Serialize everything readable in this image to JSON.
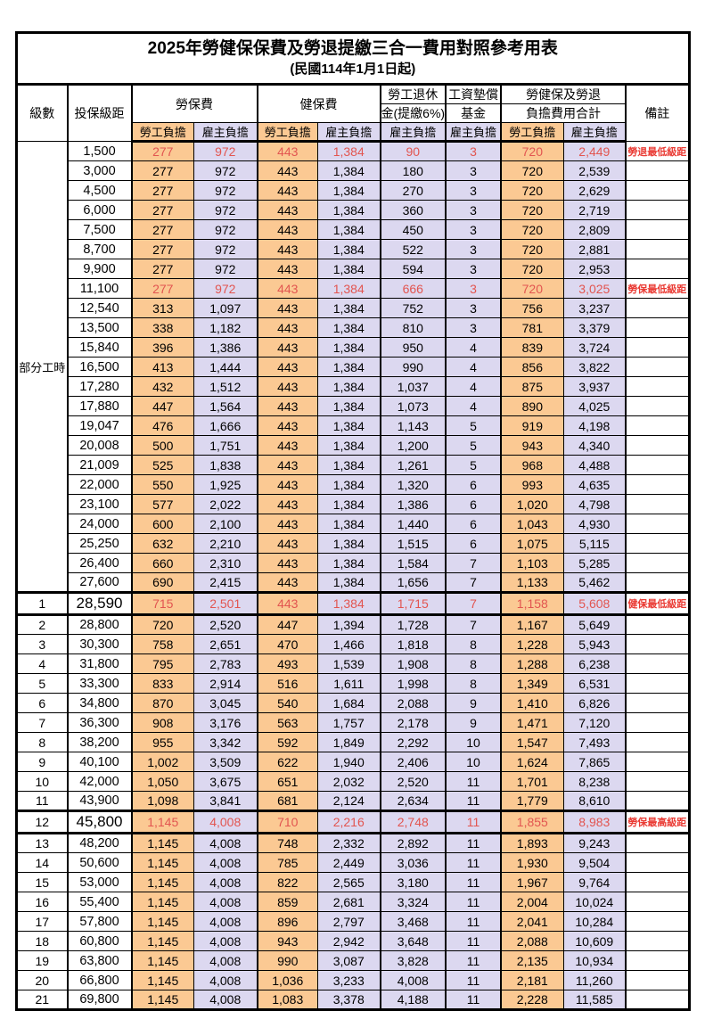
{
  "table": {
    "title": "2025年勞健保保費及勞退提繳三合一費用對照參考用表",
    "subtitle": "(民國114年1月1日起)",
    "colors": {
      "employee_col_bg": "#fbc993",
      "employer_col_bg": "#dcd8f0",
      "highlight_value_text": "#e25550",
      "note_text": "#ea3b34",
      "grid_line": "#000000"
    },
    "header": {
      "level": "級數",
      "salary": "投保級距",
      "labor_group": "勞保費",
      "health_group": "健保費",
      "pension_line1": "勞工退休",
      "pension_line2": "金(提繳6%)",
      "wage_fund_line1": "工資墊償",
      "wage_fund_line2": "基金",
      "total_line1": "勞健保及勞退",
      "total_line2": "負擔費用合計",
      "remark": "備註",
      "employee_burden": "勞工負擔",
      "employer_burden": "雇主負擔"
    },
    "part_time_label": "部分工時",
    "part_time_rowspan": 23,
    "rows": [
      {
        "level": "",
        "salary": "1,500",
        "labor_emp": "277",
        "labor_er": "972",
        "health_emp": "443",
        "health_er": "1,384",
        "pension_er": "90",
        "fund_er": "3",
        "total_emp": "720",
        "total_er": "2,449",
        "note": "勞退最低級距",
        "red": true,
        "big": false
      },
      {
        "level": "",
        "salary": "3,000",
        "labor_emp": "277",
        "labor_er": "972",
        "health_emp": "443",
        "health_er": "1,384",
        "pension_er": "180",
        "fund_er": "3",
        "total_emp": "720",
        "total_er": "2,539",
        "note": "",
        "red": false,
        "big": false
      },
      {
        "level": "",
        "salary": "4,500",
        "labor_emp": "277",
        "labor_er": "972",
        "health_emp": "443",
        "health_er": "1,384",
        "pension_er": "270",
        "fund_er": "3",
        "total_emp": "720",
        "total_er": "2,629",
        "note": "",
        "red": false,
        "big": false
      },
      {
        "level": "",
        "salary": "6,000",
        "labor_emp": "277",
        "labor_er": "972",
        "health_emp": "443",
        "health_er": "1,384",
        "pension_er": "360",
        "fund_er": "3",
        "total_emp": "720",
        "total_er": "2,719",
        "note": "",
        "red": false,
        "big": false
      },
      {
        "level": "",
        "salary": "7,500",
        "labor_emp": "277",
        "labor_er": "972",
        "health_emp": "443",
        "health_er": "1,384",
        "pension_er": "450",
        "fund_er": "3",
        "total_emp": "720",
        "total_er": "2,809",
        "note": "",
        "red": false,
        "big": false
      },
      {
        "level": "",
        "salary": "8,700",
        "labor_emp": "277",
        "labor_er": "972",
        "health_emp": "443",
        "health_er": "1,384",
        "pension_er": "522",
        "fund_er": "3",
        "total_emp": "720",
        "total_er": "2,881",
        "note": "",
        "red": false,
        "big": false
      },
      {
        "level": "",
        "salary": "9,900",
        "labor_emp": "277",
        "labor_er": "972",
        "health_emp": "443",
        "health_er": "1,384",
        "pension_er": "594",
        "fund_er": "3",
        "total_emp": "720",
        "total_er": "2,953",
        "note": "",
        "red": false,
        "big": false
      },
      {
        "level": "",
        "salary": "11,100",
        "labor_emp": "277",
        "labor_er": "972",
        "health_emp": "443",
        "health_er": "1,384",
        "pension_er": "666",
        "fund_er": "3",
        "total_emp": "720",
        "total_er": "3,025",
        "note": "勞保最低級距",
        "red": true,
        "big": false
      },
      {
        "level": "",
        "salary": "12,540",
        "labor_emp": "313",
        "labor_er": "1,097",
        "health_emp": "443",
        "health_er": "1,384",
        "pension_er": "752",
        "fund_er": "3",
        "total_emp": "756",
        "total_er": "3,237",
        "note": "",
        "red": false,
        "big": false
      },
      {
        "level": "",
        "salary": "13,500",
        "labor_emp": "338",
        "labor_er": "1,182",
        "health_emp": "443",
        "health_er": "1,384",
        "pension_er": "810",
        "fund_er": "3",
        "total_emp": "781",
        "total_er": "3,379",
        "note": "",
        "red": false,
        "big": false
      },
      {
        "level": "",
        "salary": "15,840",
        "labor_emp": "396",
        "labor_er": "1,386",
        "health_emp": "443",
        "health_er": "1,384",
        "pension_er": "950",
        "fund_er": "4",
        "total_emp": "839",
        "total_er": "3,724",
        "note": "",
        "red": false,
        "big": false
      },
      {
        "level": "",
        "salary": "16,500",
        "labor_emp": "413",
        "labor_er": "1,444",
        "health_emp": "443",
        "health_er": "1,384",
        "pension_er": "990",
        "fund_er": "4",
        "total_emp": "856",
        "total_er": "3,822",
        "note": "",
        "red": false,
        "big": false
      },
      {
        "level": "",
        "salary": "17,280",
        "labor_emp": "432",
        "labor_er": "1,512",
        "health_emp": "443",
        "health_er": "1,384",
        "pension_er": "1,037",
        "fund_er": "4",
        "total_emp": "875",
        "total_er": "3,937",
        "note": "",
        "red": false,
        "big": false
      },
      {
        "level": "",
        "salary": "17,880",
        "labor_emp": "447",
        "labor_er": "1,564",
        "health_emp": "443",
        "health_er": "1,384",
        "pension_er": "1,073",
        "fund_er": "4",
        "total_emp": "890",
        "total_er": "4,025",
        "note": "",
        "red": false,
        "big": false
      },
      {
        "level": "",
        "salary": "19,047",
        "labor_emp": "476",
        "labor_er": "1,666",
        "health_emp": "443",
        "health_er": "1,384",
        "pension_er": "1,143",
        "fund_er": "5",
        "total_emp": "919",
        "total_er": "4,198",
        "note": "",
        "red": false,
        "big": false
      },
      {
        "level": "",
        "salary": "20,008",
        "labor_emp": "500",
        "labor_er": "1,751",
        "health_emp": "443",
        "health_er": "1,384",
        "pension_er": "1,200",
        "fund_er": "5",
        "total_emp": "943",
        "total_er": "4,340",
        "note": "",
        "red": false,
        "big": false
      },
      {
        "level": "",
        "salary": "21,009",
        "labor_emp": "525",
        "labor_er": "1,838",
        "health_emp": "443",
        "health_er": "1,384",
        "pension_er": "1,261",
        "fund_er": "5",
        "total_emp": "968",
        "total_er": "4,488",
        "note": "",
        "red": false,
        "big": false
      },
      {
        "level": "",
        "salary": "22,000",
        "labor_emp": "550",
        "labor_er": "1,925",
        "health_emp": "443",
        "health_er": "1,384",
        "pension_er": "1,320",
        "fund_er": "6",
        "total_emp": "993",
        "total_er": "4,635",
        "note": "",
        "red": false,
        "big": false
      },
      {
        "level": "",
        "salary": "23,100",
        "labor_emp": "577",
        "labor_er": "2,022",
        "health_emp": "443",
        "health_er": "1,384",
        "pension_er": "1,386",
        "fund_er": "6",
        "total_emp": "1,020",
        "total_er": "4,798",
        "note": "",
        "red": false,
        "big": false
      },
      {
        "level": "",
        "salary": "24,000",
        "labor_emp": "600",
        "labor_er": "2,100",
        "health_emp": "443",
        "health_er": "1,384",
        "pension_er": "1,440",
        "fund_er": "6",
        "total_emp": "1,043",
        "total_er": "4,930",
        "note": "",
        "red": false,
        "big": false
      },
      {
        "level": "",
        "salary": "25,250",
        "labor_emp": "632",
        "labor_er": "2,210",
        "health_emp": "443",
        "health_er": "1,384",
        "pension_er": "1,515",
        "fund_er": "6",
        "total_emp": "1,075",
        "total_er": "5,115",
        "note": "",
        "red": false,
        "big": false
      },
      {
        "level": "",
        "salary": "26,400",
        "labor_emp": "660",
        "labor_er": "2,310",
        "health_emp": "443",
        "health_er": "1,384",
        "pension_er": "1,584",
        "fund_er": "7",
        "total_emp": "1,103",
        "total_er": "5,285",
        "note": "",
        "red": false,
        "big": false
      },
      {
        "level": "",
        "salary": "27,600",
        "labor_emp": "690",
        "labor_er": "2,415",
        "health_emp": "443",
        "health_er": "1,384",
        "pension_er": "1,656",
        "fund_er": "7",
        "total_emp": "1,133",
        "total_er": "5,462",
        "note": "",
        "red": false,
        "big": false
      },
      {
        "level": "1",
        "salary": "28,590",
        "labor_emp": "715",
        "labor_er": "2,501",
        "health_emp": "443",
        "health_er": "1,384",
        "pension_er": "1,715",
        "fund_er": "7",
        "total_emp": "1,158",
        "total_er": "5,608",
        "note": "健保最低級距",
        "red": true,
        "big": true
      },
      {
        "level": "2",
        "salary": "28,800",
        "labor_emp": "720",
        "labor_er": "2,520",
        "health_emp": "447",
        "health_er": "1,394",
        "pension_er": "1,728",
        "fund_er": "7",
        "total_emp": "1,167",
        "total_er": "5,649",
        "note": "",
        "red": false,
        "big": false
      },
      {
        "level": "3",
        "salary": "30,300",
        "labor_emp": "758",
        "labor_er": "2,651",
        "health_emp": "470",
        "health_er": "1,466",
        "pension_er": "1,818",
        "fund_er": "8",
        "total_emp": "1,228",
        "total_er": "5,943",
        "note": "",
        "red": false,
        "big": false
      },
      {
        "level": "4",
        "salary": "31,800",
        "labor_emp": "795",
        "labor_er": "2,783",
        "health_emp": "493",
        "health_er": "1,539",
        "pension_er": "1,908",
        "fund_er": "8",
        "total_emp": "1,288",
        "total_er": "6,238",
        "note": "",
        "red": false,
        "big": false
      },
      {
        "level": "5",
        "salary": "33,300",
        "labor_emp": "833",
        "labor_er": "2,914",
        "health_emp": "516",
        "health_er": "1,611",
        "pension_er": "1,998",
        "fund_er": "8",
        "total_emp": "1,349",
        "total_er": "6,531",
        "note": "",
        "red": false,
        "big": false
      },
      {
        "level": "6",
        "salary": "34,800",
        "labor_emp": "870",
        "labor_er": "3,045",
        "health_emp": "540",
        "health_er": "1,684",
        "pension_er": "2,088",
        "fund_er": "9",
        "total_emp": "1,410",
        "total_er": "6,826",
        "note": "",
        "red": false,
        "big": false
      },
      {
        "level": "7",
        "salary": "36,300",
        "labor_emp": "908",
        "labor_er": "3,176",
        "health_emp": "563",
        "health_er": "1,757",
        "pension_er": "2,178",
        "fund_er": "9",
        "total_emp": "1,471",
        "total_er": "7,120",
        "note": "",
        "red": false,
        "big": false
      },
      {
        "level": "8",
        "salary": "38,200",
        "labor_emp": "955",
        "labor_er": "3,342",
        "health_emp": "592",
        "health_er": "1,849",
        "pension_er": "2,292",
        "fund_er": "10",
        "total_emp": "1,547",
        "total_er": "7,493",
        "note": "",
        "red": false,
        "big": false
      },
      {
        "level": "9",
        "salary": "40,100",
        "labor_emp": "1,002",
        "labor_er": "3,509",
        "health_emp": "622",
        "health_er": "1,940",
        "pension_er": "2,406",
        "fund_er": "10",
        "total_emp": "1,624",
        "total_er": "7,865",
        "note": "",
        "red": false,
        "big": false
      },
      {
        "level": "10",
        "salary": "42,000",
        "labor_emp": "1,050",
        "labor_er": "3,675",
        "health_emp": "651",
        "health_er": "2,032",
        "pension_er": "2,520",
        "fund_er": "11",
        "total_emp": "1,701",
        "total_er": "8,238",
        "note": "",
        "red": false,
        "big": false
      },
      {
        "level": "11",
        "salary": "43,900",
        "labor_emp": "1,098",
        "labor_er": "3,841",
        "health_emp": "681",
        "health_er": "2,124",
        "pension_er": "2,634",
        "fund_er": "11",
        "total_emp": "1,779",
        "total_er": "8,610",
        "note": "",
        "red": false,
        "big": false
      },
      {
        "level": "12",
        "salary": "45,800",
        "labor_emp": "1,145",
        "labor_er": "4,008",
        "health_emp": "710",
        "health_er": "2,216",
        "pension_er": "2,748",
        "fund_er": "11",
        "total_emp": "1,855",
        "total_er": "8,983",
        "note": "勞保最高級距",
        "red": true,
        "big": true
      },
      {
        "level": "13",
        "salary": "48,200",
        "labor_emp": "1,145",
        "labor_er": "4,008",
        "health_emp": "748",
        "health_er": "2,332",
        "pension_er": "2,892",
        "fund_er": "11",
        "total_emp": "1,893",
        "total_er": "9,243",
        "note": "",
        "red": false,
        "big": false
      },
      {
        "level": "14",
        "salary": "50,600",
        "labor_emp": "1,145",
        "labor_er": "4,008",
        "health_emp": "785",
        "health_er": "2,449",
        "pension_er": "3,036",
        "fund_er": "11",
        "total_emp": "1,930",
        "total_er": "9,504",
        "note": "",
        "red": false,
        "big": false
      },
      {
        "level": "15",
        "salary": "53,000",
        "labor_emp": "1,145",
        "labor_er": "4,008",
        "health_emp": "822",
        "health_er": "2,565",
        "pension_er": "3,180",
        "fund_er": "11",
        "total_emp": "1,967",
        "total_er": "9,764",
        "note": "",
        "red": false,
        "big": false
      },
      {
        "level": "16",
        "salary": "55,400",
        "labor_emp": "1,145",
        "labor_er": "4,008",
        "health_emp": "859",
        "health_er": "2,681",
        "pension_er": "3,324",
        "fund_er": "11",
        "total_emp": "2,004",
        "total_er": "10,024",
        "note": "",
        "red": false,
        "big": false
      },
      {
        "level": "17",
        "salary": "57,800",
        "labor_emp": "1,145",
        "labor_er": "4,008",
        "health_emp": "896",
        "health_er": "2,797",
        "pension_er": "3,468",
        "fund_er": "11",
        "total_emp": "2,041",
        "total_er": "10,284",
        "note": "",
        "red": false,
        "big": false
      },
      {
        "level": "18",
        "salary": "60,800",
        "labor_emp": "1,145",
        "labor_er": "4,008",
        "health_emp": "943",
        "health_er": "2,942",
        "pension_er": "3,648",
        "fund_er": "11",
        "total_emp": "2,088",
        "total_er": "10,609",
        "note": "",
        "red": false,
        "big": false
      },
      {
        "level": "19",
        "salary": "63,800",
        "labor_emp": "1,145",
        "labor_er": "4,008",
        "health_emp": "990",
        "health_er": "3,087",
        "pension_er": "3,828",
        "fund_er": "11",
        "total_emp": "2,135",
        "total_er": "10,934",
        "note": "",
        "red": false,
        "big": false
      },
      {
        "level": "20",
        "salary": "66,800",
        "labor_emp": "1,145",
        "labor_er": "4,008",
        "health_emp": "1,036",
        "health_er": "3,233",
        "pension_er": "4,008",
        "fund_er": "11",
        "total_emp": "2,181",
        "total_er": "11,260",
        "note": "",
        "red": false,
        "big": false
      },
      {
        "level": "21",
        "salary": "69,800",
        "labor_emp": "1,145",
        "labor_er": "4,008",
        "health_emp": "1,083",
        "health_er": "3,378",
        "pension_er": "4,188",
        "fund_er": "11",
        "total_emp": "2,228",
        "total_er": "11,585",
        "note": "",
        "red": false,
        "big": false
      }
    ]
  }
}
